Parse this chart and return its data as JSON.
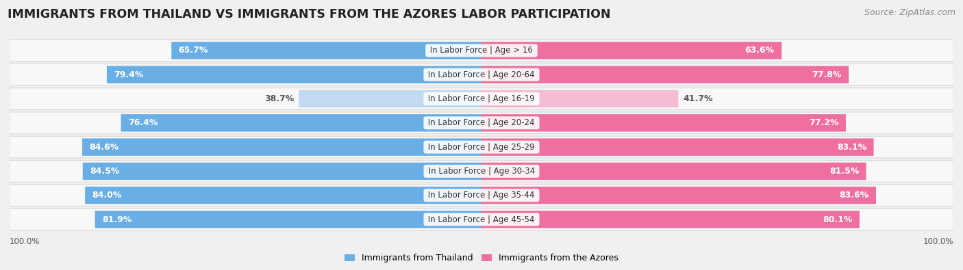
{
  "title": "IMMIGRANTS FROM THAILAND VS IMMIGRANTS FROM THE AZORES LABOR PARTICIPATION",
  "source": "Source: ZipAtlas.com",
  "categories": [
    "In Labor Force | Age > 16",
    "In Labor Force | Age 20-64",
    "In Labor Force | Age 16-19",
    "In Labor Force | Age 20-24",
    "In Labor Force | Age 25-29",
    "In Labor Force | Age 30-34",
    "In Labor Force | Age 35-44",
    "In Labor Force | Age 45-54"
  ],
  "thailand_values": [
    65.7,
    79.4,
    38.7,
    76.4,
    84.6,
    84.5,
    84.0,
    81.9
  ],
  "azores_values": [
    63.6,
    77.8,
    41.7,
    77.2,
    83.1,
    81.5,
    83.6,
    80.1
  ],
  "thailand_color_strong": "#6aaee6",
  "thailand_color_light": "#c2d9f0",
  "azores_color_strong": "#ee6fa0",
  "azores_color_light": "#f5bcd5",
  "background_color": "#f0f0f0",
  "row_bg_color": "#f8f8f8",
  "row_border_color": "#d8d8d8",
  "legend_thailand": "Immigrants from Thailand",
  "legend_azores": "Immigrants from the Azores",
  "title_fontsize": 12.5,
  "source_fontsize": 9,
  "label_fontsize": 9,
  "category_fontsize": 8.5,
  "thresh": 55.0,
  "max_val": 100.0
}
